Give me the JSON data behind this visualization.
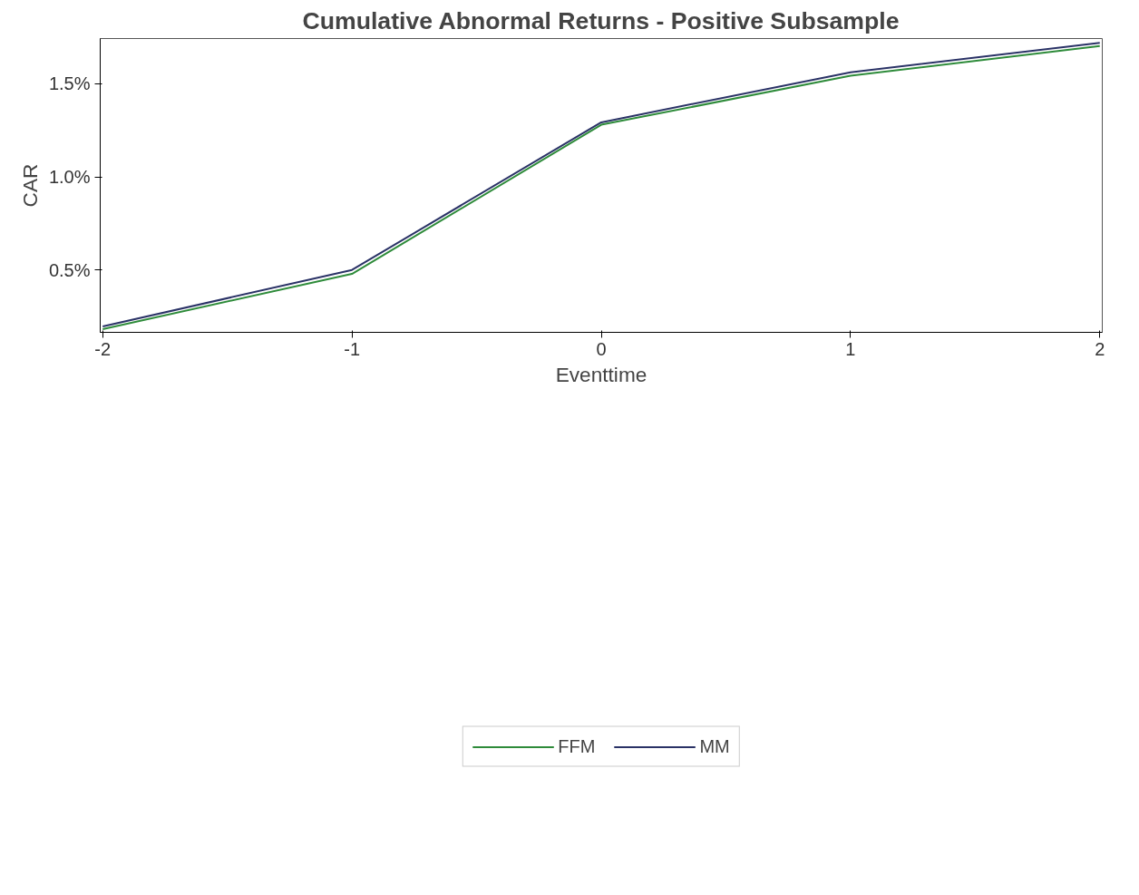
{
  "chart_data": {
    "type": "line",
    "title": "Cumulative Abnormal Returns - Positive Subsample",
    "xlabel": "Eventtime",
    "ylabel": "CAR",
    "x": [
      -2,
      -1,
      0,
      1,
      2
    ],
    "series": [
      {
        "name": "FFM",
        "color": "#2e8b3a",
        "values": [
          0.182,
          0.479,
          1.28,
          1.543,
          1.703
        ]
      },
      {
        "name": "MM",
        "color": "#2a3266",
        "values": [
          0.197,
          0.5,
          1.293,
          1.562,
          1.72
        ]
      }
    ],
    "xlim": [
      -2.01,
      2.01
    ],
    "ylim": [
      0.165,
      1.743
    ],
    "xticks": [
      -2,
      -1,
      0,
      1,
      2
    ],
    "yticks": [
      {
        "value": 0.5,
        "label": "0.5%"
      },
      {
        "value": 1.0,
        "label": "1.0%"
      },
      {
        "value": 1.5,
        "label": "1.5%"
      }
    ],
    "grid": false,
    "legend": "bottom",
    "marker": "none",
    "line_style": "solid"
  }
}
